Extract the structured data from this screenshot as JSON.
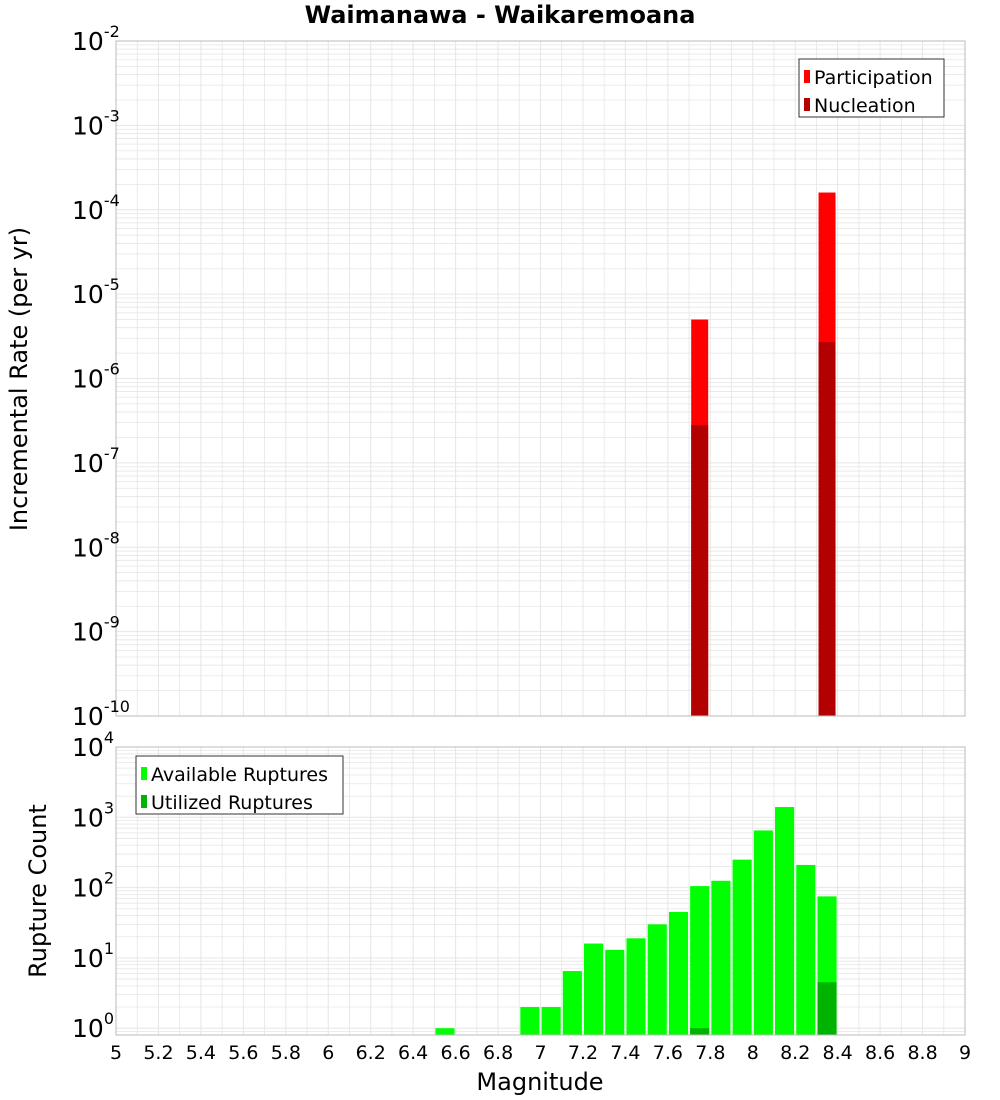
{
  "title": "Waimanawa - Waikaremoana",
  "colors": {
    "participation": "#ff0000",
    "nucleation": "#b30000",
    "available": "#00ff00",
    "utilized": "#00b300",
    "grid": "#e6e6e6",
    "frame": "#bbbbbb"
  },
  "chart_data": [
    {
      "type": "bar",
      "panel": "top",
      "ylabel": "Incremental Rate (per yr)",
      "yscale": "log",
      "ylim": [
        1e-10,
        0.01
      ],
      "ytick_exponents": [
        -10,
        -9,
        -8,
        -7,
        -6,
        -5,
        -4,
        -3,
        -2
      ],
      "grid": true,
      "legend_position": "top-right",
      "bar_width": 0.08,
      "series": [
        {
          "name": "Participation",
          "color": "#ff0000",
          "x": [
            7.75,
            8.35
          ],
          "values": [
            5e-06,
            0.00016
          ]
        },
        {
          "name": "Nucleation",
          "color": "#b30000",
          "x": [
            7.75,
            8.35
          ],
          "values": [
            2.8e-07,
            2.7e-06
          ]
        }
      ]
    },
    {
      "type": "bar",
      "panel": "bottom",
      "ylabel": "Rupture Count",
      "xlabel": "Magnitude",
      "yscale": "log",
      "ylim": [
        0.8,
        10000
      ],
      "ytick_exponents": [
        0,
        1,
        2,
        3,
        4
      ],
      "xlim": [
        5,
        9
      ],
      "xticks": [
        "5",
        "5.2",
        "5.4",
        "5.6",
        "5.8",
        "6",
        "6.2",
        "6.4",
        "6.6",
        "6.8",
        "7",
        "7.2",
        "7.4",
        "7.6",
        "7.8",
        "8",
        "8.2",
        "8.4",
        "8.6",
        "8.8",
        "9"
      ],
      "grid": true,
      "legend_position": "top-left",
      "bar_width": 0.09,
      "series": [
        {
          "name": "Available Ruptures",
          "color": "#00ff00",
          "x": [
            6.55,
            6.95,
            7.05,
            7.15,
            7.25,
            7.35,
            7.45,
            7.55,
            7.65,
            7.75,
            7.85,
            7.95,
            8.05,
            8.15,
            8.25,
            8.35
          ],
          "values": [
            1,
            2,
            2,
            6.5,
            16,
            13,
            19,
            30,
            45,
            105,
            125,
            250,
            650,
            1400,
            210,
            75
          ]
        },
        {
          "name": "Utilized Ruptures",
          "color": "#00b300",
          "x": [
            7.75,
            8.35
          ],
          "values": [
            1,
            4.5
          ]
        }
      ]
    }
  ]
}
